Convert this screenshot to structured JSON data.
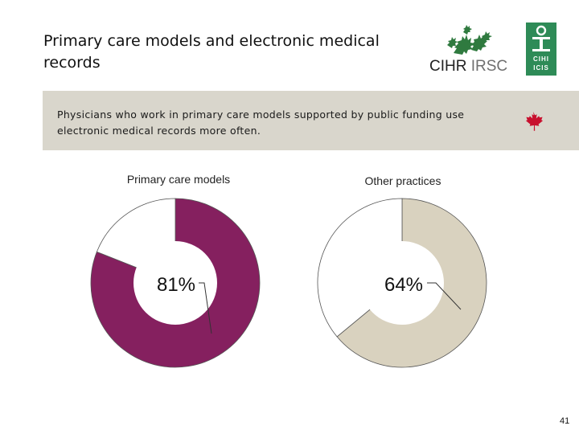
{
  "slide": {
    "title": "Primary care models and electronic medical records",
    "subtitle": "Physicians who work in primary care models supported by public funding use electronic medical records more often.",
    "page_number": "41"
  },
  "logos": {
    "cihr_text_en": "CIHR",
    "cihr_text_fr": "IRSC",
    "cihi_text": "CIHI ICIS"
  },
  "colors": {
    "primary_series": "#85205f",
    "other_series": "#d9d2bf",
    "remainder": "#ffffff",
    "subtitle_band": "#d9d6cc",
    "cihr_green": "#2f7a3f",
    "cihi_green": "#2e8b57",
    "maple_red": "#c8102e"
  },
  "chart_data": [
    {
      "type": "pie",
      "variant": "donut",
      "title": "Primary care models",
      "slices": [
        {
          "label": "81%",
          "value": 81
        },
        {
          "label": "",
          "value": 19
        }
      ]
    },
    {
      "type": "pie",
      "variant": "donut",
      "title": "Other practices",
      "slices": [
        {
          "label": "64%",
          "value": 64
        },
        {
          "label": "",
          "value": 36
        }
      ]
    }
  ]
}
